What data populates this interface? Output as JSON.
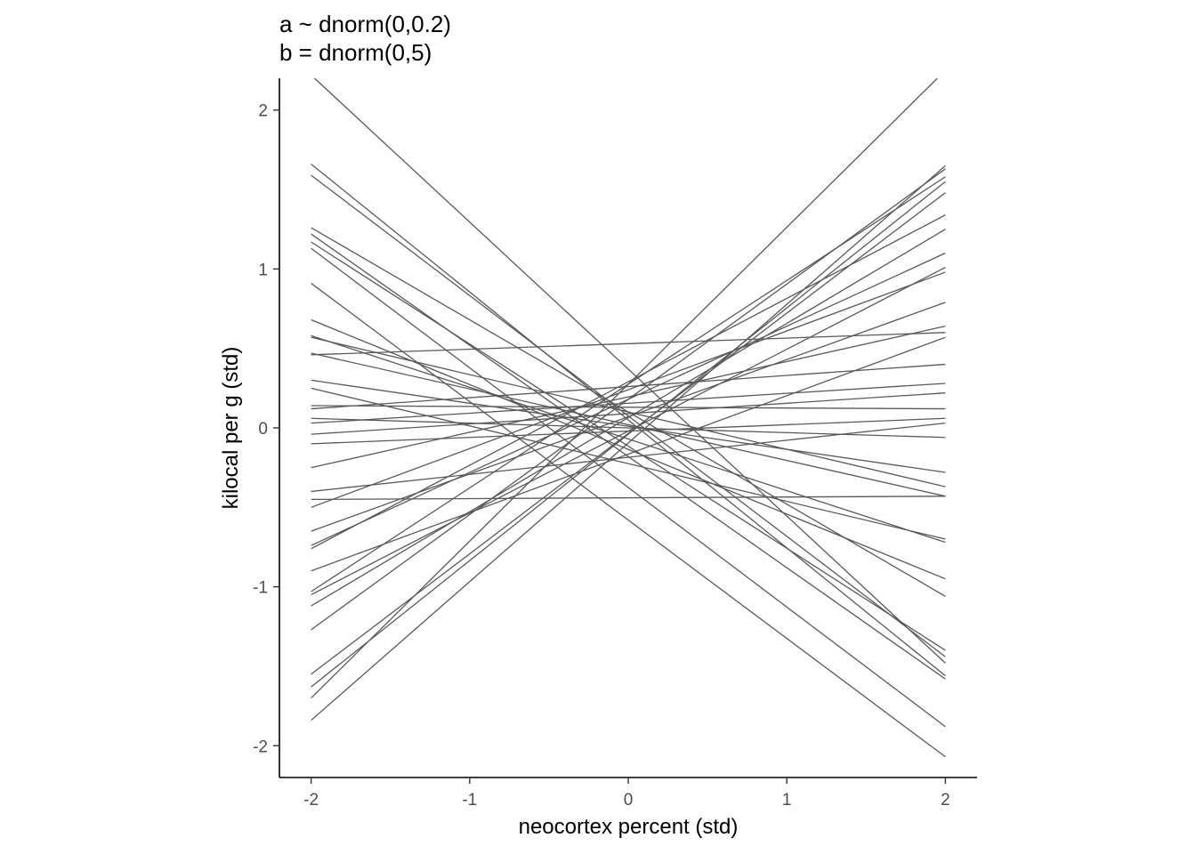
{
  "chart_data": {
    "type": "line",
    "title_lines": [
      "a ~ dnorm(0,0.2)",
      "b = dnorm(0,5)"
    ],
    "xlabel": "neocortex percent (std)",
    "ylabel": "kilocal per g (std)",
    "xlim": [
      -2.2,
      2.2
    ],
    "ylim": [
      -2.2,
      2.2
    ],
    "xticks": [
      "-2",
      "-1",
      "0",
      "1",
      "2"
    ],
    "yticks": [
      "-2",
      "-1",
      "0",
      "1",
      "2"
    ],
    "grid": false,
    "line_color": "#595959",
    "x": [
      -2,
      2
    ],
    "series": [
      {
        "values": [
          2.22,
          -1.48
        ]
      },
      {
        "values": [
          1.66,
          -1.56
        ]
      },
      {
        "values": [
          1.59,
          -1.44
        ]
      },
      {
        "values": [
          1.26,
          -1.06
        ]
      },
      {
        "values": [
          1.22,
          -1.58
        ]
      },
      {
        "values": [
          1.17,
          -1.4
        ]
      },
      {
        "values": [
          1.13,
          -1.88
        ]
      },
      {
        "values": [
          0.91,
          -2.07
        ]
      },
      {
        "values": [
          0.68,
          -0.95
        ]
      },
      {
        "values": [
          0.58,
          -0.72
        ]
      },
      {
        "values": [
          0.57,
          -0.37
        ]
      },
      {
        "values": [
          0.46,
          0.6
        ]
      },
      {
        "values": [
          0.47,
          -0.43
        ]
      },
      {
        "values": [
          0.3,
          -0.28
        ]
      },
      {
        "values": [
          0.25,
          -0.7
        ]
      },
      {
        "values": [
          0.14,
          0.12
        ]
      },
      {
        "values": [
          0.12,
          0.4
        ]
      },
      {
        "values": [
          0.06,
          -0.06
        ]
      },
      {
        "values": [
          0.03,
          0.28
        ]
      },
      {
        "values": [
          -0.04,
          0.22
        ]
      },
      {
        "values": [
          -0.1,
          0.06
        ]
      },
      {
        "values": [
          -0.25,
          0.64
        ]
      },
      {
        "values": [
          -0.4,
          0.03
        ]
      },
      {
        "values": [
          -0.45,
          -0.43
        ]
      },
      {
        "values": [
          -0.5,
          0.98
        ]
      },
      {
        "values": [
          -0.65,
          0.79
        ]
      },
      {
        "values": [
          -0.74,
          1.1
        ]
      },
      {
        "values": [
          -0.76,
          1.34
        ]
      },
      {
        "values": [
          -0.9,
          0.57
        ]
      },
      {
        "values": [
          -1.03,
          1.58
        ]
      },
      {
        "values": [
          -1.05,
          1.01
        ]
      },
      {
        "values": [
          -1.12,
          1.25
        ]
      },
      {
        "values": [
          -1.27,
          1.63
        ]
      },
      {
        "values": [
          -1.55,
          1.48
        ]
      },
      {
        "values": [
          -1.63,
          1.55
        ]
      },
      {
        "values": [
          -1.7,
          2.25
        ]
      },
      {
        "values": [
          -1.84,
          1.65
        ]
      }
    ]
  }
}
